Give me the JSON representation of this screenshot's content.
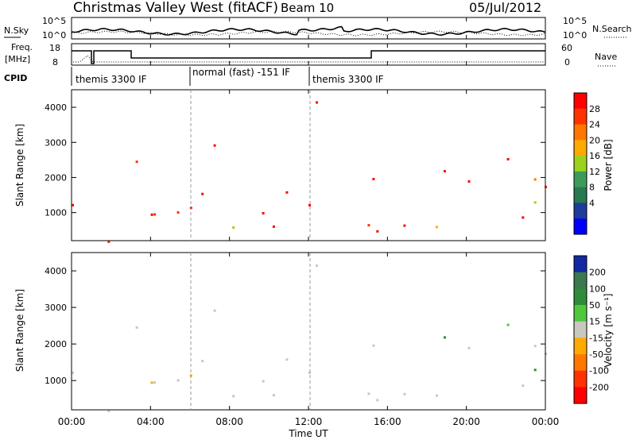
{
  "header": {
    "title": "Christmas Valley West (fitACF)",
    "beam": "Beam 10",
    "date": "05/Jul/2012"
  },
  "strip": {
    "nsky_label": "N.Sky",
    "nsky_ticks": [
      "10^5",
      "10^0"
    ],
    "nsearch_label": "N.Search",
    "freq_label_line1": "Freq.",
    "freq_label_line2": "[MHz]",
    "freq_ticks": [
      "18",
      "8"
    ],
    "nave_ticks": [
      "60",
      "0"
    ],
    "nave_label": "Nave",
    "cpid_label": "CPID",
    "cpid_segments": [
      {
        "label": "themis 3300 IF",
        "start_hour": 0,
        "end_hour": 6
      },
      {
        "label": "normal (fast) -151 IF",
        "start_hour": 6,
        "end_hour": 12
      },
      {
        "label": "themis 3300 IF",
        "start_hour": 12,
        "end_hour": 24
      }
    ]
  },
  "chart_data": [
    {
      "type": "heatmap",
      "panel": "power",
      "xlabel": "",
      "ylabel": "Slant Range [km]",
      "xlim": [
        0,
        24
      ],
      "ylim": [
        200,
        4500
      ],
      "yticks": [
        "1000",
        "2000",
        "3000",
        "4000"
      ],
      "colorbar": {
        "label": "Power [dB]",
        "ticks": [
          "28",
          "24",
          "20",
          "16",
          "12",
          "8",
          "4"
        ],
        "colors": [
          "#ff0000",
          "#ff3300",
          "#ff7700",
          "#ffaa00",
          "#9bd21e",
          "#3c9b5a",
          "#287850",
          "#1e3c9b",
          "#0000ff"
        ]
      }
    },
    {
      "type": "heatmap",
      "panel": "velocity",
      "xlabel": "Time UT",
      "ylabel": "Slant Range [km]",
      "xlim": [
        0,
        24
      ],
      "ylim": [
        200,
        4500
      ],
      "xticks": [
        "00:00",
        "04:00",
        "08:00",
        "12:00",
        "16:00",
        "20:00",
        "00:00"
      ],
      "yticks": [
        "1000",
        "2000",
        "3000",
        "4000"
      ],
      "colorbar": {
        "label": "Velocity [m s⁻¹]",
        "ticks": [
          "200",
          "100",
          "50",
          "15",
          "-15",
          "-50",
          "-100",
          "-200"
        ],
        "colors": [
          "#1428a0",
          "#3c7850",
          "#2e8b3a",
          "#50c83c",
          "#c8c8be",
          "#ffaa00",
          "#ff7700",
          "#ff3300",
          "#ff0000"
        ]
      }
    }
  ]
}
